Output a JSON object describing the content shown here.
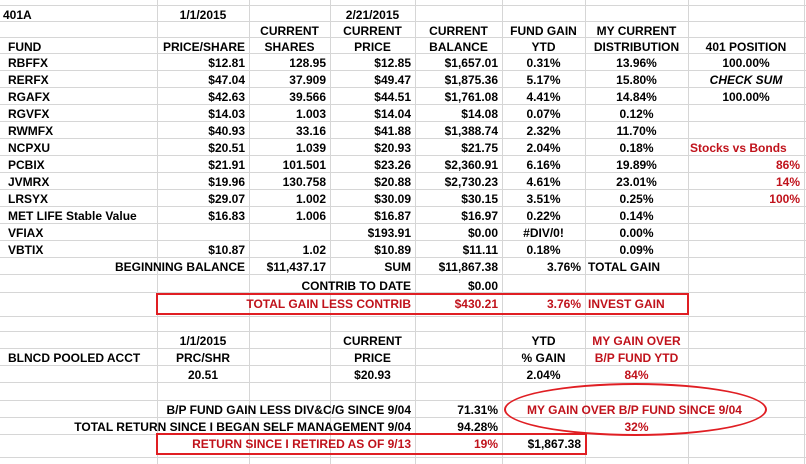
{
  "sheet_title": "401A",
  "headers": {
    "date1": "1/1/2015",
    "date2": "2/21/2015",
    "current1": "CURRENT",
    "current2": "CURRENT",
    "current3": "CURRENT",
    "fund_gain": "FUND GAIN",
    "my_current": "MY CURRENT",
    "fund": "FUND",
    "price_share": "PRICE/SHARE",
    "shares": "SHARES",
    "price": "PRICE",
    "balance": "BALANCE",
    "ytd": "YTD",
    "distribution": "DISTRIBUTION",
    "position_401": "401 POSITION"
  },
  "funds": [
    {
      "name": "RBFFX",
      "price_share": "$12.81",
      "shares": "128.95",
      "price": "$12.85",
      "balance": "$1,657.01",
      "ytd": "0.31%",
      "dist": "13.96%"
    },
    {
      "name": "RERFX",
      "price_share": "$47.04",
      "shares": "37.909",
      "price": "$49.47",
      "balance": "$1,875.36",
      "ytd": "5.17%",
      "dist": "15.80%"
    },
    {
      "name": "RGAFX",
      "price_share": "$42.63",
      "shares": "39.566",
      "price": "$44.51",
      "balance": "$1,761.08",
      "ytd": "4.41%",
      "dist": "14.84%"
    },
    {
      "name": "RGVFX",
      "price_share": "$14.03",
      "shares": "1.003",
      "price": "$14.04",
      "balance": "$14.08",
      "ytd": "0.07%",
      "dist": "0.12%"
    },
    {
      "name": "RWMFX",
      "price_share": "$40.93",
      "shares": "33.16",
      "price": "$41.88",
      "balance": "$1,388.74",
      "ytd": "2.32%",
      "dist": "11.70%"
    },
    {
      "name": "NCPXU",
      "price_share": "$20.51",
      "shares": "1.039",
      "price": "$20.93",
      "balance": "$21.75",
      "ytd": "2.04%",
      "dist": "0.18%"
    },
    {
      "name": "PCBIX",
      "price_share": "$21.91",
      "shares": "101.501",
      "price": "$23.26",
      "balance": "$2,360.91",
      "ytd": "6.16%",
      "dist": "19.89%"
    },
    {
      "name": "JVMRX",
      "price_share": "$19.96",
      "shares": "130.758",
      "price": "$20.88",
      "balance": "$2,730.23",
      "ytd": "4.61%",
      "dist": "23.01%"
    },
    {
      "name": "LRSYX",
      "price_share": "$29.07",
      "shares": "1.002",
      "price": "$30.09",
      "balance": "$30.15",
      "ytd": "3.51%",
      "dist": "0.25%"
    },
    {
      "name": "MET LIFE Stable Value",
      "price_share": "$16.83",
      "shares": "1.006",
      "price": "$16.87",
      "balance": "$16.97",
      "ytd": "0.22%",
      "dist": "0.14%"
    },
    {
      "name": "VFIAX",
      "price_share": "",
      "shares": "",
      "price": "$193.91",
      "balance": "$0.00",
      "ytd": "#DIV/0!",
      "dist": "0.00%"
    },
    {
      "name": "VBTIX",
      "price_share": "$10.87",
      "shares": "1.02",
      "price": "$10.89",
      "balance": "$11.11",
      "ytd": "0.18%",
      "dist": "0.09%"
    }
  ],
  "side": {
    "position_value": "100.00%",
    "check_sum_label": "CHECK SUM",
    "check_sum_value": "100.00%",
    "stocks_vs_bonds": "Stocks vs Bonds",
    "pct1": "86%",
    "pct2": "14%",
    "pct3": "100%"
  },
  "summary": {
    "beginning_balance_label": "BEGINNING BALANCE",
    "beginning_balance_value": "$11,437.17",
    "sum_label": "SUM",
    "sum_value": "$11,867.38",
    "total_gain_pct": "3.76%",
    "total_gain_label": "TOTAL GAIN",
    "contrib_label": "CONTRIB TO DATE",
    "contrib_value": "$0.00",
    "less_contrib_label": "TOTAL GAIN LESS CONTRIB",
    "less_contrib_value": "$430.21",
    "invest_gain_pct": "3.76%",
    "invest_gain_label": "INVEST GAIN"
  },
  "pooled": {
    "date": "1/1/2015",
    "current": "CURRENT",
    "ytd": "YTD",
    "my_gain_over": "MY GAIN OVER",
    "acct_label": "BLNCD POOLED ACCT",
    "prc_shr": "PRC/SHR",
    "price_label": "PRICE",
    "pct_gain": "% GAIN",
    "bp_fund_ytd": "B/P FUND YTD",
    "prc_value": "20.51",
    "price_value": "$20.93",
    "gain_value": "2.04%",
    "over_value": "84%"
  },
  "bottom": {
    "bp_label": "B/P FUND GAIN LESS DIV&C/G SINCE 9/04",
    "bp_value": "71.31%",
    "my_gain_label": "MY GAIN OVER  B/P FUND  SINCE 9/04",
    "tr_label": "TOTAL RETURN SINCE I BEGAN SELF MANAGEMENT 9/04",
    "tr_value": "94.28%",
    "my_gain_value": "32%",
    "retired_label": "RETURN SINCE I RETIRED AS OF 9/13",
    "retired_pct": "19%",
    "retired_value": "$1,867.38"
  }
}
